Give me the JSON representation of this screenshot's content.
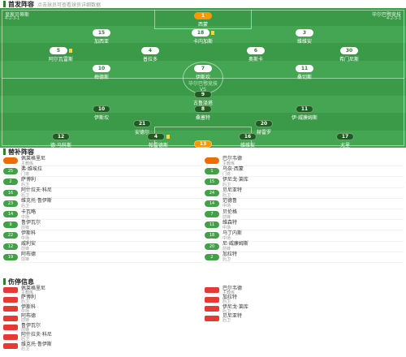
{
  "lineup_header": {
    "title": "首发阵容",
    "subtitle": "点击球员可查看球员详细数据"
  },
  "teams": {
    "home_name": "皇家贝蒂斯",
    "home_formation": "4-2-3-1",
    "away_name": "毕尔巴鄂竞技",
    "away_formation": "4-2-3-1",
    "home_coach": "佩莱格里尼",
    "away_coach": "巴尔韦德"
  },
  "pitch_center": {
    "line1": "毕尔巴鄂竞技",
    "line2": "VS"
  },
  "home_players": [
    {
      "num": "1",
      "name": "西蒙",
      "gk": true
    },
    {
      "num": "15",
      "name": "加西亚"
    },
    {
      "num": "18",
      "name": "卡内加斯"
    },
    {
      "num": "3",
      "name": "维维安"
    },
    {
      "num": "5",
      "name": "阿尔瓦雷斯"
    },
    {
      "num": "4",
      "name": "普拉多"
    },
    {
      "num": "6",
      "name": "奥斯卡"
    },
    {
      "num": "30",
      "name": "希门尼斯"
    },
    {
      "num": "10",
      "name": "梅德斯"
    },
    {
      "num": "7",
      "name": "伊斯坎"
    },
    {
      "num": "11",
      "name": "桑切斯"
    }
  ],
  "away_players": [
    {
      "num": "13",
      "name": "阿吉雷萨巴拉",
      "gk": true
    },
    {
      "num": "12",
      "name": "德·马科斯"
    },
    {
      "num": "4",
      "name": "帕雷德斯"
    },
    {
      "num": "16",
      "name": "维维安"
    },
    {
      "num": "17",
      "name": "尤里"
    },
    {
      "num": "20",
      "name": "赫雷罗"
    },
    {
      "num": "21",
      "name": "安德尔"
    },
    {
      "num": "10",
      "name": "伊斯坎"
    },
    {
      "num": "8",
      "name": "桑塞特"
    },
    {
      "num": "11",
      "name": "伊·威廉姆斯"
    },
    {
      "num": "9",
      "name": "古鲁泽塔"
    }
  ],
  "subs_header": {
    "title": "替补阵容"
  },
  "subs_left": [
    {
      "num": "",
      "name": "佩莱格里尼",
      "pos": "主教练",
      "cls": "o"
    },
    {
      "num": "25",
      "name": "弗·维埃拉",
      "pos": "门将",
      "cls": "g"
    },
    {
      "num": "2",
      "name": "萨博利",
      "pos": "后卫",
      "cls": "g"
    },
    {
      "num": "16",
      "name": "阿什拉夫·科尼",
      "pos": "后卫",
      "cls": "g"
    },
    {
      "num": "23",
      "name": "维克托·鲁伊斯",
      "pos": "后卫",
      "cls": "g"
    },
    {
      "num": "14",
      "name": "卡瓦略",
      "pos": "中场",
      "cls": "g"
    },
    {
      "num": "9",
      "name": "鲁伊瓦尔",
      "pos": "前锋",
      "cls": "g"
    },
    {
      "num": "22",
      "name": "伊斯科",
      "pos": "中场",
      "cls": "g"
    },
    {
      "num": "12",
      "name": "威利安",
      "pos": "前锋",
      "cls": "g"
    },
    {
      "num": "19",
      "name": "阿布德",
      "pos": "前锋",
      "cls": "g"
    }
  ],
  "subs_right": [
    {
      "num": "",
      "name": "巴尔韦德",
      "pos": "主教练",
      "cls": "o"
    },
    {
      "num": "1",
      "name": "乌奈·西蒙",
      "pos": "门将",
      "cls": "g"
    },
    {
      "num": "15",
      "name": "伊尼戈·莱库",
      "pos": "后卫",
      "cls": "g"
    },
    {
      "num": "24",
      "name": "贝尼亚特",
      "pos": "后卫",
      "cls": "g"
    },
    {
      "num": "14",
      "name": "范德鲁",
      "pos": "中场",
      "cls": "g"
    },
    {
      "num": "7",
      "name": "贝伦格",
      "pos": "前锋",
      "cls": "g"
    },
    {
      "num": "11",
      "name": "维森特",
      "pos": "中场",
      "cls": "g"
    },
    {
      "num": "18",
      "name": "马丁内斯",
      "pos": "中场",
      "cls": "g"
    },
    {
      "num": "20",
      "name": "尼·威廉姆斯",
      "pos": "前锋",
      "cls": "g"
    },
    {
      "num": "2",
      "name": "加拉特",
      "pos": "后卫",
      "cls": "g"
    }
  ],
  "injury_header": {
    "title": "伤停信息"
  },
  "injury_left": [
    {
      "name": "佩莱格里尼",
      "pos": "主教练"
    },
    {
      "name": "萨博利",
      "pos": "后卫"
    },
    {
      "name": "伊斯科",
      "pos": "中场"
    },
    {
      "name": "阿布德",
      "pos": "前锋"
    },
    {
      "name": "鲁伊瓦尔",
      "pos": "前锋"
    },
    {
      "name": "阿什拉夫·科尼",
      "pos": "后卫"
    },
    {
      "name": "维克托·鲁伊斯",
      "pos": "后卫"
    }
  ],
  "injury_right": [
    {
      "name": "巴尔韦德",
      "pos": "主教练"
    },
    {
      "name": "加拉特",
      "pos": "后卫"
    },
    {
      "name": "伊尼戈·莱库",
      "pos": "后卫"
    },
    {
      "name": "贝尼亚特",
      "pos": "后卫"
    }
  ]
}
